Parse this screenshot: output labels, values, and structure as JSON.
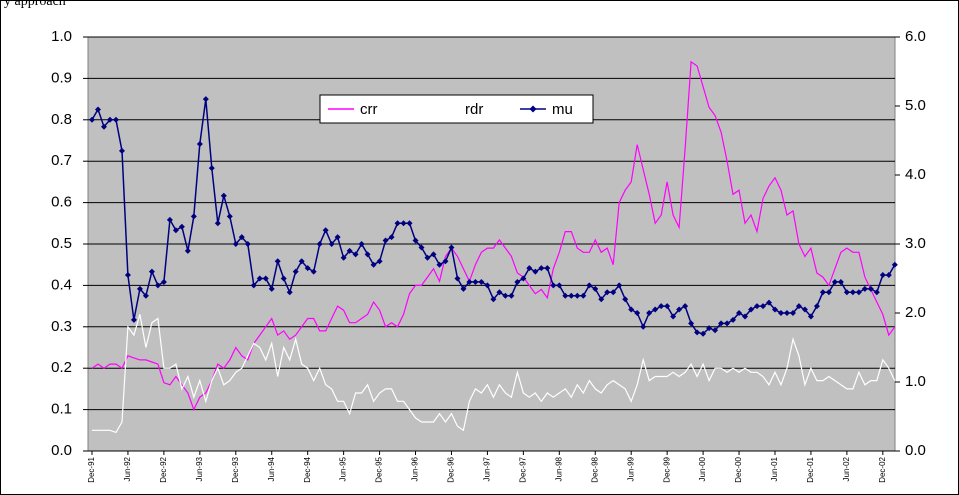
{
  "chart_data": {
    "type": "line",
    "title": "y approach",
    "legend": "top",
    "grid": true,
    "background": "#c0c0c0",
    "categories": [
      "Dec-91",
      null,
      null,
      null,
      null,
      null,
      "Jun-92",
      null,
      null,
      null,
      null,
      null,
      "Dec-92",
      null,
      null,
      null,
      null,
      null,
      "Jun-93",
      null,
      null,
      null,
      null,
      null,
      "Dec-93",
      null,
      null,
      null,
      null,
      null,
      "Jun-94",
      null,
      null,
      null,
      null,
      null,
      "Dec-94",
      null,
      null,
      null,
      null,
      null,
      "Jun-95",
      null,
      null,
      null,
      null,
      null,
      "Dec-95",
      null,
      null,
      null,
      null,
      null,
      "Jun-96",
      null,
      null,
      null,
      null,
      null,
      "Dec-96",
      null,
      null,
      null,
      null,
      null,
      "Jun-97",
      null,
      null,
      null,
      null,
      null,
      "Dec-97",
      null,
      null,
      null,
      null,
      null,
      "Jun-98",
      null,
      null,
      null,
      null,
      null,
      "Dec-98",
      null,
      null,
      null,
      null,
      null,
      "Jun-99",
      null,
      null,
      null,
      null,
      null,
      "Dec-99",
      null,
      null,
      null,
      null,
      null,
      "Jun-00",
      null,
      null,
      null,
      null,
      null,
      "Dec-00",
      null,
      null,
      null,
      null,
      null,
      "Jun-01",
      null,
      null,
      null,
      null,
      null,
      "Dec-01",
      null,
      null,
      null,
      null,
      null,
      "Jun-02",
      null,
      null,
      null,
      null,
      null,
      "Dec-02",
      null,
      null
    ],
    "ylim": [
      0,
      1
    ],
    "yticks": [
      {
        "value": 0,
        "label": "0.0"
      },
      0.1,
      0.2,
      0.3,
      0.4,
      0.5,
      0.6,
      0.7,
      0.8,
      0.9,
      {
        "value": 1,
        "label": "1.0"
      }
    ],
    "y2lim": [
      0,
      6
    ],
    "y2ticks": [
      {
        "value": 0,
        "label": "0.0"
      },
      {
        "value": 1,
        "label": "1.0"
      },
      {
        "value": 2,
        "label": "2.0"
      },
      {
        "value": 3,
        "label": "3.0"
      },
      {
        "value": 4,
        "label": "4.0"
      },
      {
        "value": 5,
        "label": "5.0"
      },
      {
        "value": 6,
        "label": "6.0"
      }
    ],
    "series": [
      {
        "name": "crr",
        "color": "#ff00ff",
        "marker": "none",
        "values": [
          0.2,
          0.21,
          0.2,
          0.21,
          0.21,
          0.2,
          0.23,
          0.225,
          0.22,
          0.22,
          0.215,
          0.21,
          0.165,
          0.16,
          0.18,
          0.16,
          0.14,
          0.1,
          0.13,
          0.14,
          0.17,
          0.21,
          0.2,
          0.22,
          0.25,
          0.23,
          0.22,
          0.26,
          0.28,
          0.3,
          0.32,
          0.28,
          0.29,
          0.27,
          0.28,
          0.3,
          0.32,
          0.32,
          0.29,
          0.29,
          0.32,
          0.35,
          0.34,
          0.31,
          0.31,
          0.32,
          0.33,
          0.36,
          0.34,
          0.3,
          0.31,
          0.3,
          0.33,
          0.38,
          0.4,
          0.4,
          0.42,
          0.44,
          0.41,
          0.47,
          0.49,
          0.47,
          0.44,
          0.41,
          0.45,
          0.48,
          0.49,
          0.49,
          0.51,
          0.49,
          0.47,
          0.43,
          0.42,
          0.4,
          0.38,
          0.39,
          0.37,
          0.44,
          0.48,
          0.53,
          0.53,
          0.49,
          0.48,
          0.48,
          0.51,
          0.48,
          0.49,
          0.45,
          0.6,
          0.63,
          0.65,
          0.74,
          0.68,
          0.62,
          0.55,
          0.57,
          0.65,
          0.57,
          0.54,
          0.73,
          0.94,
          0.93,
          0.88,
          0.83,
          0.81,
          0.77,
          0.7,
          0.62,
          0.63,
          0.55,
          0.57,
          0.53,
          0.61,
          0.64,
          0.66,
          0.63,
          0.57,
          0.58,
          0.5,
          0.47,
          0.49,
          0.43,
          0.42,
          0.4,
          0.44,
          0.48,
          0.49,
          0.48,
          0.48,
          0.42,
          0.39,
          0.36,
          0.33,
          0.28,
          0.3
        ]
      },
      {
        "name": "rdr",
        "color": "#ffffff",
        "marker": "none",
        "values": [
          0.05,
          0.05,
          0.05,
          0.05,
          0.045,
          0.07,
          0.3,
          0.28,
          0.33,
          0.25,
          0.31,
          0.32,
          0.2,
          0.2,
          0.21,
          0.15,
          0.18,
          0.13,
          0.17,
          0.12,
          0.17,
          0.2,
          0.16,
          0.17,
          0.19,
          0.2,
          0.23,
          0.26,
          0.25,
          0.22,
          0.26,
          0.18,
          0.25,
          0.22,
          0.27,
          0.21,
          0.2,
          0.17,
          0.2,
          0.16,
          0.15,
          0.12,
          0.12,
          0.09,
          0.14,
          0.14,
          0.16,
          0.12,
          0.14,
          0.15,
          0.15,
          0.12,
          0.12,
          0.1,
          0.08,
          0.07,
          0.07,
          0.07,
          0.09,
          0.07,
          0.09,
          0.06,
          0.05,
          0.12,
          0.15,
          0.14,
          0.16,
          0.13,
          0.16,
          0.14,
          0.13,
          0.19,
          0.14,
          0.13,
          0.14,
          0.12,
          0.14,
          0.13,
          0.14,
          0.15,
          0.13,
          0.16,
          0.14,
          0.17,
          0.15,
          0.14,
          0.16,
          0.17,
          0.16,
          0.15,
          0.12,
          0.16,
          0.22,
          0.17,
          0.18,
          0.18,
          0.18,
          0.19,
          0.18,
          0.19,
          0.21,
          0.18,
          0.21,
          0.17,
          0.2,
          0.2,
          0.19,
          0.2,
          0.19,
          0.2,
          0.19,
          0.19,
          0.18,
          0.16,
          0.19,
          0.16,
          0.2,
          0.27,
          0.23,
          0.16,
          0.2,
          0.17,
          0.17,
          0.18,
          0.17,
          0.16,
          0.15,
          0.15,
          0.19,
          0.16,
          0.17,
          0.17,
          0.22,
          0.2,
          0.17
        ]
      },
      {
        "name": "mu",
        "color": "#000080",
        "marker": "diamond",
        "axis": "y2",
        "values": [
          4.8,
          4.95,
          4.7,
          4.8,
          4.8,
          4.35,
          2.55,
          1.9,
          2.35,
          2.25,
          2.6,
          2.4,
          2.45,
          3.35,
          3.2,
          3.25,
          2.9,
          3.4,
          4.45,
          5.1,
          4.1,
          3.3,
          3.7,
          3.4,
          3.0,
          3.1,
          3.0,
          2.4,
          2.5,
          2.5,
          2.35,
          2.75,
          2.5,
          2.3,
          2.6,
          2.75,
          2.65,
          2.6,
          3.0,
          3.2,
          3.0,
          3.1,
          2.8,
          2.9,
          2.85,
          3.0,
          2.85,
          2.7,
          2.75,
          3.05,
          3.1,
          3.3,
          3.3,
          3.3,
          3.05,
          2.95,
          2.8,
          2.85,
          2.7,
          2.75,
          2.95,
          2.5,
          2.35,
          2.45,
          2.45,
          2.45,
          2.4,
          2.2,
          2.3,
          2.25,
          2.25,
          2.45,
          2.5,
          2.65,
          2.6,
          2.65,
          2.65,
          2.4,
          2.4,
          2.25,
          2.25,
          2.25,
          2.25,
          2.4,
          2.35,
          2.2,
          2.3,
          2.3,
          2.4,
          2.2,
          2.05,
          2.0,
          1.8,
          2.0,
          2.05,
          2.1,
          2.1,
          1.95,
          2.05,
          2.1,
          1.85,
          1.72,
          1.7,
          1.78,
          1.75,
          1.85,
          1.85,
          1.9,
          2.0,
          1.95,
          2.05,
          2.1,
          2.1,
          2.15,
          2.05,
          2.0,
          2.0,
          2.0,
          2.1,
          2.05,
          1.95,
          2.1,
          2.3,
          2.3,
          2.45,
          2.45,
          2.3,
          2.3,
          2.3,
          2.35,
          2.35,
          2.3,
          2.55,
          2.55,
          2.7
        ]
      }
    ]
  }
}
